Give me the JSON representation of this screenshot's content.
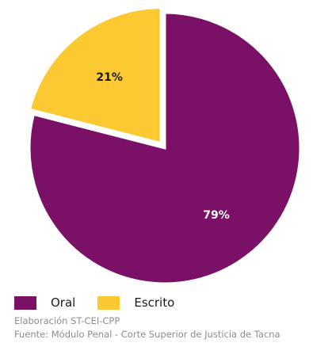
{
  "chart_data": {
    "type": "pie",
    "categories": [
      "Oral",
      "Escrito"
    ],
    "values": [
      79,
      21
    ],
    "labels": [
      "79%",
      "21%"
    ],
    "colors": [
      "#7b1067",
      "#fcc932"
    ],
    "label_colors": [
      "#ffffff",
      "#1a1a1a"
    ],
    "exploded": "Escrito",
    "legend_position": "bottom-left"
  },
  "legend": {
    "items": [
      {
        "label": "Oral",
        "color": "#7b1067"
      },
      {
        "label": "Escrito",
        "color": "#fcc932"
      }
    ]
  },
  "source": {
    "line1": "Elaboración ST-CEI-CPP",
    "line2": "Fuente: Módulo Penal - Corte Superior de Justicia de Tacna"
  }
}
